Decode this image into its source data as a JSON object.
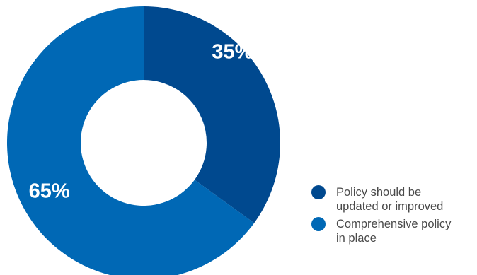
{
  "chart_data": {
    "type": "pie",
    "donut": true,
    "slices": [
      {
        "label": "Policy should be updated or improved",
        "value": 35,
        "display": "35%",
        "color": "#00498f"
      },
      {
        "label": "Comprehensive policy in place",
        "value": 65,
        "display": "65%",
        "color": "#0068b5"
      }
    ],
    "legend_position": "bottom-right"
  },
  "legend": {
    "items": [
      {
        "line1": "Policy should be",
        "line2": "updated or improved",
        "color": "#00498f"
      },
      {
        "line1": "Comprehensive policy",
        "line2": "in place",
        "color": "#0068b5"
      }
    ]
  }
}
